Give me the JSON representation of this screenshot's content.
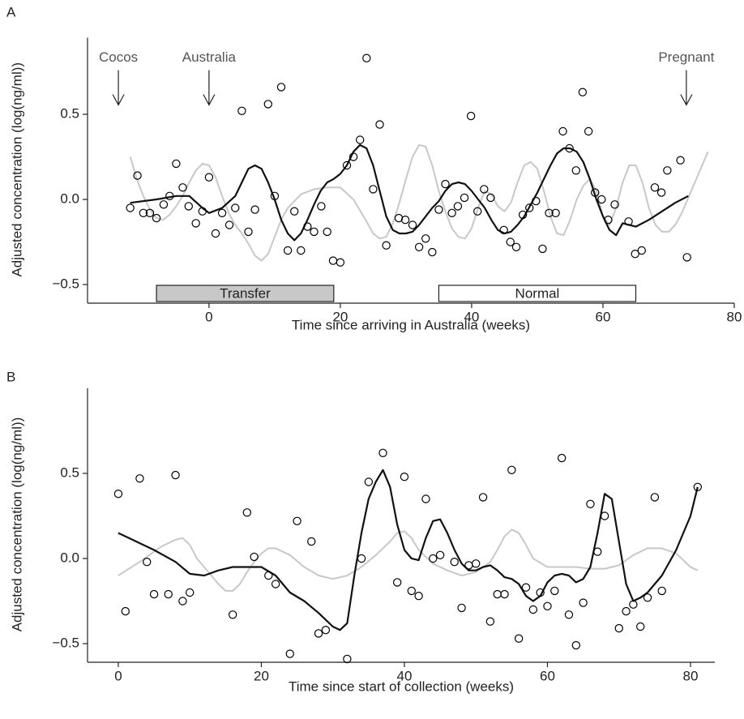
{
  "chart_data": [
    {
      "type": "scatter",
      "panel_label": "A",
      "x_label": "Time since arriving in Australia (weeks)",
      "y_label": "Adjusted concentration (log(ng/ml))",
      "xlim": [
        -18.5,
        80
      ],
      "ylim": [
        -0.6,
        0.95
      ],
      "xticks": [
        0,
        20,
        40,
        60,
        80
      ],
      "yticks": [
        {
          "value": -0.5,
          "label": "−0.5"
        },
        {
          "value": 0,
          "label": "0.0"
        },
        {
          "value": 0.5,
          "label": "0.5"
        }
      ],
      "annotations": [
        {
          "text": "Cocos",
          "x": -13.8
        },
        {
          "text": "Australia",
          "x": 0
        },
        {
          "text": "Pregnant",
          "x": 72.7
        }
      ],
      "periods": [
        {
          "label": "Transfer",
          "start": -8,
          "end": 19,
          "color": "#c8c8c8"
        },
        {
          "label": "Normal",
          "start": 35,
          "end": 65,
          "color": "#ffffff"
        }
      ],
      "series": [
        {
          "kind": "points",
          "color": "#000000",
          "x": [
            -12,
            -10.9,
            -10,
            -9,
            -8,
            -6.9,
            -6,
            -5,
            -4,
            -3.1,
            -2,
            -1,
            0,
            1,
            2,
            3.1,
            4,
            5,
            6,
            7,
            9,
            10,
            11,
            12,
            13,
            14,
            15,
            16,
            17.1,
            18,
            18.9,
            20,
            21,
            22,
            23,
            24,
            25,
            26,
            27,
            28.9,
            29.9,
            31,
            32,
            33,
            34,
            35,
            36,
            37,
            37.9,
            38.9,
            39.9,
            40.9,
            41.9,
            42.9,
            44.9,
            45.9,
            46.8,
            47.8,
            48.8,
            49.8,
            50.8,
            51.8,
            52.8,
            53.9,
            54.9,
            55.9,
            56.9,
            57.8,
            58.8,
            59.8,
            60.8,
            61.8,
            63.9,
            64.9,
            65.9,
            67.9,
            68.9,
            69.8,
            71.8,
            72.8
          ],
          "values": [
            -0.05,
            0.14,
            -0.08,
            -0.08,
            -0.11,
            -0.03,
            0.02,
            0.21,
            0.07,
            -0.04,
            -0.14,
            -0.07,
            0.13,
            -0.2,
            -0.08,
            -0.15,
            -0.05,
            0.52,
            -0.19,
            -0.06,
            0.56,
            0.02,
            0.66,
            -0.3,
            -0.07,
            -0.3,
            -0.16,
            -0.19,
            -0.04,
            -0.19,
            -0.36,
            -0.37,
            0.2,
            0.25,
            0.35,
            0.83,
            0.06,
            0.44,
            -0.27,
            -0.11,
            -0.12,
            -0.15,
            -0.28,
            -0.23,
            -0.31,
            -0.06,
            0.09,
            -0.08,
            -0.04,
            0.01,
            0.49,
            -0.07,
            0.06,
            0.01,
            -0.18,
            -0.25,
            -0.28,
            -0.09,
            -0.05,
            -0.01,
            -0.29,
            -0.08,
            -0.08,
            0.4,
            0.3,
            0.17,
            0.63,
            0.4,
            0.04,
            0,
            -0.12,
            -0.03,
            -0.13,
            -0.32,
            -0.3,
            0.07,
            0.04,
            0.17,
            0.23,
            -0.34
          ]
        },
        {
          "kind": "line",
          "color": "#c8c8c8",
          "x": [
            -12,
            -11,
            -10,
            -9,
            -8,
            -7,
            -6,
            -5,
            -4,
            -3,
            -2,
            -1,
            0,
            1,
            2,
            3,
            4,
            5,
            6,
            7,
            8,
            9,
            10,
            11,
            12,
            14,
            16,
            18,
            20,
            22,
            24,
            25,
            26,
            27,
            28,
            29,
            30,
            31,
            32,
            33,
            34,
            35,
            36,
            37,
            38,
            39,
            40,
            41,
            42,
            43,
            44,
            45,
            46,
            47,
            48,
            49,
            50,
            51,
            52,
            53,
            54,
            55,
            56,
            57,
            58,
            59,
            60,
            61,
            62,
            63,
            64,
            65,
            66,
            67,
            68,
            69,
            70,
            71,
            72,
            74,
            76
          ],
          "values": [
            0.25,
            0.12,
            0.02,
            -0.06,
            -0.11,
            -0.12,
            -0.09,
            -0.04,
            0.02,
            0.1,
            0.17,
            0.21,
            0.2,
            0.13,
            0.02,
            -0.08,
            -0.15,
            -0.2,
            -0.26,
            -0.33,
            -0.36,
            -0.32,
            -0.22,
            -0.12,
            -0.05,
            0.03,
            0.06,
            0.07,
            0.07,
            0,
            -0.13,
            -0.2,
            -0.23,
            -0.22,
            -0.14,
            -0.02,
            0.12,
            0.25,
            0.32,
            0.31,
            0.2,
            0.05,
            -0.07,
            -0.17,
            -0.22,
            -0.23,
            -0.17,
            -0.05,
            0.05,
            0.03,
            -0.04,
            -0.07,
            -0.02,
            0.1,
            0.2,
            0.22,
            0.18,
            0.05,
            -0.1,
            -0.2,
            -0.21,
            -0.12,
            0,
            0.08,
            0.12,
            0.05,
            -0.1,
            -0.15,
            -0.05,
            0.1,
            0.2,
            0.2,
            0.1,
            -0.05,
            -0.15,
            -0.19,
            -0.19,
            -0.15,
            -0.08,
            0.1,
            0.28
          ]
        },
        {
          "kind": "line",
          "color": "#111111",
          "x": [
            -12,
            -8,
            -5,
            -3,
            -1,
            0,
            2,
            4,
            5,
            6,
            7,
            8,
            9,
            10,
            11,
            12,
            13,
            14,
            15,
            16,
            17,
            18,
            19,
            20,
            21,
            22,
            23,
            24,
            25,
            26,
            27,
            28,
            29,
            30,
            31,
            32,
            33,
            34,
            35,
            36,
            37,
            38,
            39,
            40,
            41,
            42,
            43,
            44,
            45,
            46,
            47,
            48,
            49,
            50,
            51,
            52,
            53,
            54,
            55,
            56,
            57,
            58,
            59,
            60,
            61,
            62,
            63,
            65,
            67,
            69,
            71,
            73
          ],
          "values": [
            -0.02,
            0,
            0.02,
            0.02,
            -0.05,
            -0.08,
            -0.05,
            0.02,
            0.1,
            0.18,
            0.2,
            0.18,
            0.1,
            0,
            -0.12,
            -0.2,
            -0.24,
            -0.2,
            -0.12,
            -0.03,
            0.05,
            0.1,
            0.12,
            0.15,
            0.2,
            0.28,
            0.32,
            0.3,
            0.2,
            0.05,
            -0.1,
            -0.18,
            -0.2,
            -0.2,
            -0.19,
            -0.15,
            -0.1,
            -0.05,
            -0.01,
            0.05,
            0.09,
            0.1,
            0.09,
            0.05,
            0,
            -0.05,
            -0.12,
            -0.18,
            -0.2,
            -0.19,
            -0.15,
            -0.1,
            -0.03,
            0.04,
            0.12,
            0.2,
            0.27,
            0.3,
            0.3,
            0.28,
            0.22,
            0.12,
            0,
            -0.1,
            -0.18,
            -0.21,
            -0.14,
            -0.16,
            -0.12,
            -0.07,
            -0.02,
            0.02
          ]
        }
      ]
    },
    {
      "type": "scatter",
      "panel_label": "B",
      "x_label": "Time since start of collection (weeks)",
      "y_label": "Adjusted concentration (log(ng/ml))",
      "xlim": [
        -4.3,
        83.4
      ],
      "ylim": [
        -0.6,
        1.0
      ],
      "xticks": [
        0,
        20,
        40,
        60,
        80
      ],
      "yticks": [
        {
          "value": -0.5,
          "label": "−0.5"
        },
        {
          "value": 0,
          "label": "0.0"
        },
        {
          "value": 0.5,
          "label": "0.5"
        }
      ],
      "series": [
        {
          "kind": "points",
          "color": "#000000",
          "x": [
            0,
            1,
            3,
            4,
            5,
            7,
            8,
            9,
            10,
            16,
            18,
            19,
            21,
            22,
            24,
            25,
            27,
            28,
            29,
            32,
            34,
            35,
            37,
            39,
            40,
            41,
            42,
            43,
            44,
            45,
            47,
            48,
            49,
            50,
            51,
            52,
            53,
            54,
            55,
            56,
            57,
            58,
            59,
            60,
            61,
            62,
            63,
            64,
            65,
            66,
            67,
            68,
            70,
            71,
            72,
            73,
            74,
            75,
            76,
            81
          ],
          "values": [
            0.38,
            -0.31,
            0.47,
            -0.02,
            -0.21,
            -0.21,
            0.49,
            -0.25,
            -0.2,
            -0.33,
            0.27,
            0.01,
            -0.1,
            -0.15,
            -0.56,
            0.22,
            0.1,
            -0.44,
            -0.42,
            -0.59,
            0,
            0.45,
            0.62,
            -0.14,
            0.48,
            -0.19,
            -0.22,
            0.35,
            0,
            0.02,
            -0.02,
            -0.29,
            -0.04,
            -0.03,
            0.36,
            -0.37,
            -0.21,
            -0.21,
            0.52,
            -0.47,
            -0.17,
            -0.3,
            -0.2,
            -0.28,
            -0.19,
            0.59,
            -0.33,
            -0.51,
            -0.26,
            0.32,
            0.04,
            0.25,
            -0.41,
            -0.31,
            -0.27,
            -0.4,
            -0.23,
            0.36,
            -0.19,
            0.42
          ]
        },
        {
          "kind": "line",
          "color": "#c8c8c8",
          "x": [
            0,
            3,
            6,
            8,
            9,
            10,
            11,
            12,
            14,
            15,
            16,
            17,
            18,
            19,
            20,
            21,
            22,
            24,
            26,
            28,
            30,
            32,
            34,
            36,
            38,
            39,
            40,
            41,
            42,
            44,
            46,
            48,
            50,
            52,
            53,
            54,
            55,
            56,
            57,
            58,
            60,
            62,
            64,
            66,
            68,
            70,
            72,
            74,
            76,
            78,
            80,
            81
          ],
          "values": [
            -0.1,
            -0.02,
            0.07,
            0.11,
            0.12,
            0.08,
            0,
            -0.05,
            -0.15,
            -0.19,
            -0.19,
            -0.15,
            -0.08,
            -0.02,
            0.03,
            0.06,
            0.06,
            0.02,
            -0.05,
            -0.1,
            -0.12,
            -0.1,
            -0.05,
            0.02,
            0.1,
            0.15,
            0.16,
            0.12,
            0.05,
            -0.03,
            -0.07,
            -0.1,
            -0.08,
            -0.02,
            0.05,
            0.13,
            0.17,
            0.15,
            0.08,
            0,
            -0.05,
            -0.05,
            -0.05,
            -0.06,
            -0.06,
            -0.04,
            0.02,
            0.06,
            0.06,
            0.03,
            -0.05,
            -0.07
          ]
        },
        {
          "kind": "line",
          "color": "#111111",
          "x": [
            0,
            5,
            8,
            10,
            12,
            14,
            16,
            20,
            22,
            24,
            26,
            28,
            30,
            31,
            32,
            33,
            34,
            35,
            36,
            37,
            38,
            39,
            40,
            41,
            42,
            43,
            44,
            45,
            46,
            47,
            48,
            49,
            50,
            51,
            52,
            53,
            54,
            55,
            56,
            57,
            58,
            59,
            60,
            61,
            62,
            63,
            64,
            65,
            66,
            67,
            68,
            69,
            70,
            71,
            72,
            73,
            74,
            76,
            78,
            80,
            81
          ],
          "values": [
            0.15,
            0.05,
            -0.02,
            -0.09,
            -0.1,
            -0.07,
            -0.05,
            -0.05,
            -0.1,
            -0.2,
            -0.25,
            -0.32,
            -0.4,
            -0.42,
            -0.38,
            -0.1,
            0.15,
            0.35,
            0.45,
            0.52,
            0.42,
            0.2,
            0.05,
            0,
            -0.01,
            0.12,
            0.22,
            0.23,
            0.15,
            0.05,
            -0.03,
            -0.07,
            -0.07,
            -0.05,
            -0.04,
            -0.07,
            -0.11,
            -0.12,
            -0.15,
            -0.22,
            -0.25,
            -0.22,
            -0.14,
            -0.1,
            -0.09,
            -0.1,
            -0.14,
            -0.12,
            -0.05,
            0.15,
            0.38,
            0.35,
            0.1,
            -0.15,
            -0.25,
            -0.23,
            -0.2,
            -0.1,
            0.05,
            0.25,
            0.42
          ]
        }
      ]
    }
  ]
}
